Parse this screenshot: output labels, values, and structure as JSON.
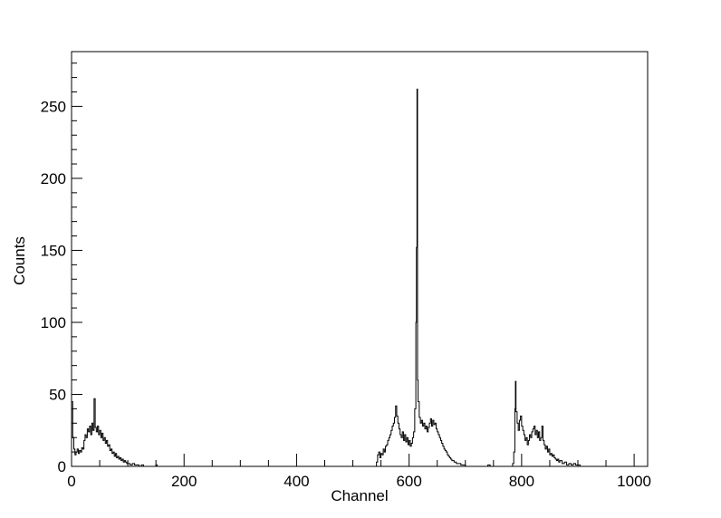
{
  "chart_data": {
    "type": "line",
    "style": "histogram-step",
    "xlabel": "Channel",
    "ylabel": "Counts",
    "xlim": [
      0,
      1024
    ],
    "ylim": [
      0,
      288
    ],
    "x_ticks": [
      0,
      200,
      400,
      600,
      800,
      1000
    ],
    "y_ticks": [
      0,
      50,
      100,
      150,
      200,
      250
    ],
    "grid": false,
    "line_color": "#000000",
    "points": [
      [
        0,
        45
      ],
      [
        2,
        20
      ],
      [
        4,
        12
      ],
      [
        6,
        8
      ],
      [
        8,
        10
      ],
      [
        10,
        12
      ],
      [
        12,
        9
      ],
      [
        14,
        11
      ],
      [
        16,
        10
      ],
      [
        18,
        13
      ],
      [
        20,
        12
      ],
      [
        22,
        18
      ],
      [
        24,
        22
      ],
      [
        26,
        20
      ],
      [
        28,
        26
      ],
      [
        30,
        24
      ],
      [
        32,
        28
      ],
      [
        34,
        22
      ],
      [
        36,
        30
      ],
      [
        38,
        25
      ],
      [
        40,
        47
      ],
      [
        42,
        27
      ],
      [
        44,
        24
      ],
      [
        46,
        28
      ],
      [
        48,
        22
      ],
      [
        50,
        25
      ],
      [
        52,
        20
      ],
      [
        54,
        23
      ],
      [
        56,
        18
      ],
      [
        58,
        20
      ],
      [
        60,
        16
      ],
      [
        62,
        18
      ],
      [
        64,
        14
      ],
      [
        66,
        15
      ],
      [
        68,
        11
      ],
      [
        70,
        12
      ],
      [
        72,
        9
      ],
      [
        74,
        10
      ],
      [
        76,
        7
      ],
      [
        78,
        9
      ],
      [
        80,
        6
      ],
      [
        82,
        7
      ],
      [
        84,
        5
      ],
      [
        86,
        6
      ],
      [
        88,
        4
      ],
      [
        90,
        5
      ],
      [
        92,
        3
      ],
      [
        94,
        4
      ],
      [
        96,
        3
      ],
      [
        98,
        2
      ],
      [
        100,
        2
      ],
      [
        104,
        1
      ],
      [
        108,
        2
      ],
      [
        112,
        1
      ],
      [
        116,
        1
      ],
      [
        120,
        0
      ],
      [
        124,
        1
      ],
      [
        128,
        0
      ],
      [
        140,
        0
      ],
      [
        150,
        1
      ],
      [
        152,
        0
      ],
      [
        200,
        0
      ],
      [
        260,
        0
      ],
      [
        300,
        0
      ],
      [
        400,
        0
      ],
      [
        500,
        0
      ],
      [
        540,
        0
      ],
      [
        542,
        3
      ],
      [
        544,
        8
      ],
      [
        546,
        10
      ],
      [
        548,
        6
      ],
      [
        550,
        9
      ],
      [
        552,
        8
      ],
      [
        554,
        12
      ],
      [
        556,
        10
      ],
      [
        558,
        14
      ],
      [
        560,
        15
      ],
      [
        562,
        18
      ],
      [
        564,
        20
      ],
      [
        566,
        22
      ],
      [
        568,
        25
      ],
      [
        570,
        28
      ],
      [
        572,
        30
      ],
      [
        574,
        34
      ],
      [
        576,
        42
      ],
      [
        578,
        35
      ],
      [
        580,
        30
      ],
      [
        582,
        26
      ],
      [
        584,
        22
      ],
      [
        586,
        20
      ],
      [
        588,
        24
      ],
      [
        590,
        18
      ],
      [
        592,
        22
      ],
      [
        594,
        17
      ],
      [
        596,
        20
      ],
      [
        598,
        15
      ],
      [
        600,
        18
      ],
      [
        602,
        14
      ],
      [
        604,
        16
      ],
      [
        606,
        20
      ],
      [
        608,
        24
      ],
      [
        610,
        40
      ],
      [
        612,
        100
      ],
      [
        613,
        152
      ],
      [
        614,
        262
      ],
      [
        615,
        60
      ],
      [
        616,
        45
      ],
      [
        618,
        34
      ],
      [
        620,
        30
      ],
      [
        622,
        32
      ],
      [
        624,
        28
      ],
      [
        626,
        30
      ],
      [
        628,
        26
      ],
      [
        630,
        28
      ],
      [
        632,
        24
      ],
      [
        634,
        27
      ],
      [
        636,
        30
      ],
      [
        638,
        33
      ],
      [
        640,
        28
      ],
      [
        642,
        32
      ],
      [
        644,
        29
      ],
      [
        646,
        30
      ],
      [
        648,
        26
      ],
      [
        650,
        24
      ],
      [
        652,
        22
      ],
      [
        654,
        20
      ],
      [
        656,
        18
      ],
      [
        658,
        16
      ],
      [
        660,
        14
      ],
      [
        662,
        12
      ],
      [
        664,
        11
      ],
      [
        666,
        10
      ],
      [
        668,
        8
      ],
      [
        670,
        7
      ],
      [
        672,
        6
      ],
      [
        674,
        5
      ],
      [
        676,
        4
      ],
      [
        678,
        4
      ],
      [
        680,
        3
      ],
      [
        684,
        2
      ],
      [
        688,
        2
      ],
      [
        692,
        1
      ],
      [
        696,
        1
      ],
      [
        700,
        0
      ],
      [
        720,
        0
      ],
      [
        740,
        1
      ],
      [
        744,
        0
      ],
      [
        780,
        0
      ],
      [
        784,
        2
      ],
      [
        786,
        10
      ],
      [
        788,
        40
      ],
      [
        789,
        59
      ],
      [
        790,
        38
      ],
      [
        792,
        30
      ],
      [
        794,
        25
      ],
      [
        796,
        32
      ],
      [
        798,
        35
      ],
      [
        800,
        28
      ],
      [
        802,
        25
      ],
      [
        804,
        22
      ],
      [
        806,
        18
      ],
      [
        808,
        20
      ],
      [
        810,
        15
      ],
      [
        812,
        18
      ],
      [
        814,
        22
      ],
      [
        816,
        20
      ],
      [
        818,
        24
      ],
      [
        820,
        26
      ],
      [
        822,
        28
      ],
      [
        824,
        22
      ],
      [
        826,
        25
      ],
      [
        828,
        20
      ],
      [
        830,
        24
      ],
      [
        832,
        18
      ],
      [
        834,
        20
      ],
      [
        836,
        28
      ],
      [
        838,
        18
      ],
      [
        840,
        15
      ],
      [
        842,
        12
      ],
      [
        844,
        14
      ],
      [
        846,
        10
      ],
      [
        848,
        12
      ],
      [
        850,
        8
      ],
      [
        852,
        9
      ],
      [
        854,
        7
      ],
      [
        856,
        8
      ],
      [
        858,
        6
      ],
      [
        860,
        5
      ],
      [
        862,
        4
      ],
      [
        864,
        5
      ],
      [
        866,
        3
      ],
      [
        868,
        4
      ],
      [
        872,
        2
      ],
      [
        876,
        3
      ],
      [
        880,
        1
      ],
      [
        884,
        2
      ],
      [
        888,
        1
      ],
      [
        892,
        2
      ],
      [
        896,
        1
      ],
      [
        900,
        1
      ],
      [
        904,
        0
      ],
      [
        1000,
        0
      ],
      [
        1024,
        0
      ]
    ]
  }
}
